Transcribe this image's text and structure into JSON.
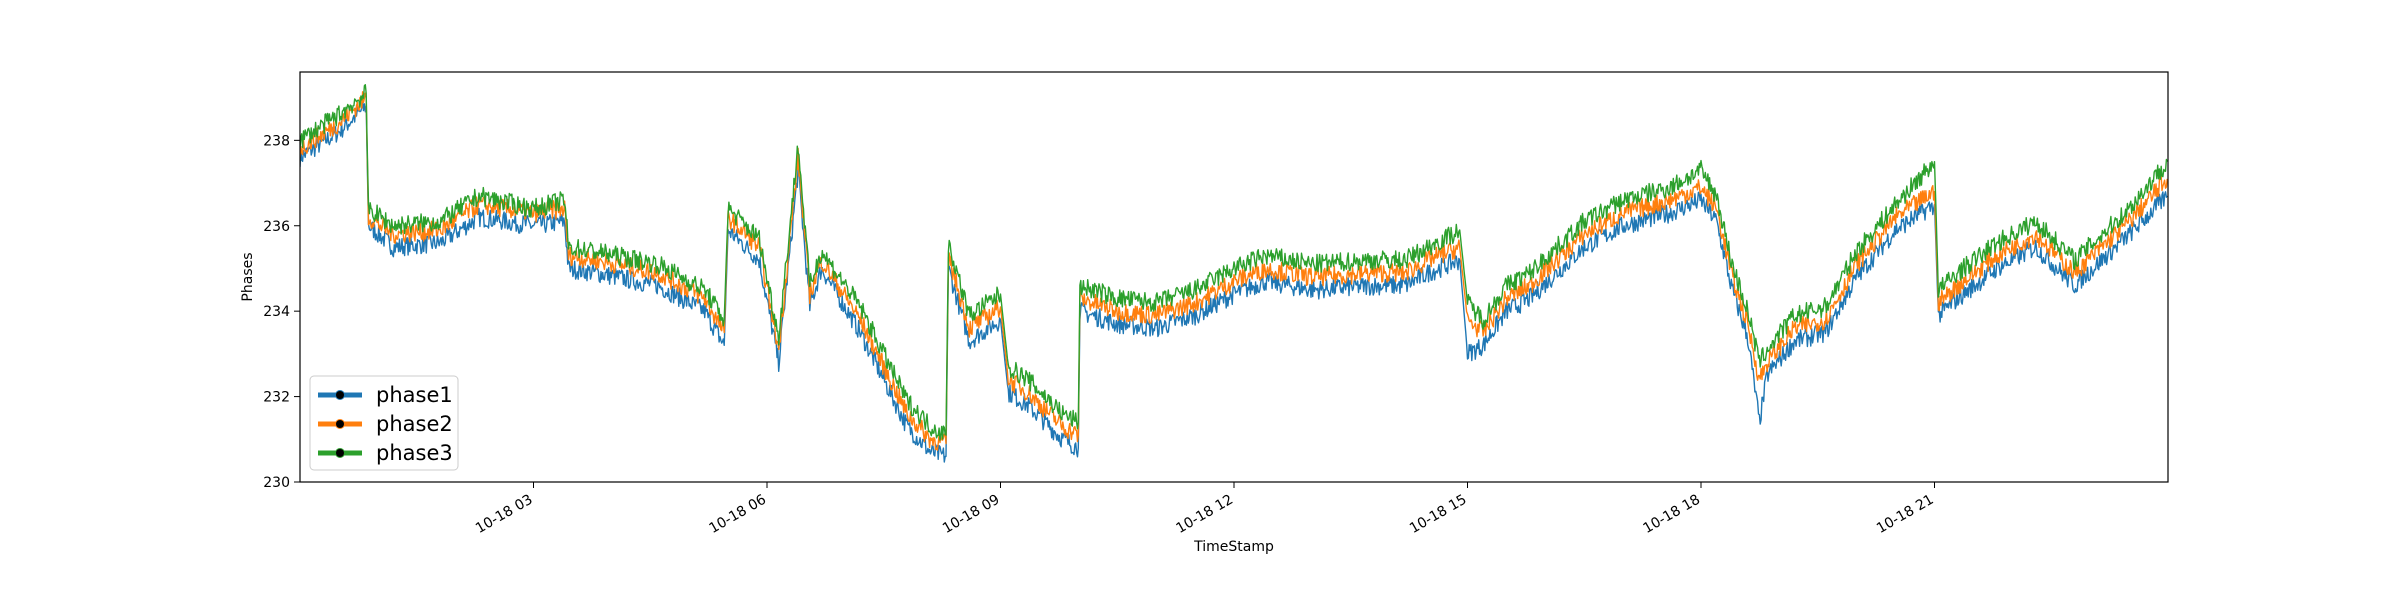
{
  "chart_data": {
    "type": "line",
    "title": "",
    "xlabel": "TimeStamp",
    "ylabel": "Phases",
    "xlim": [
      "10-18 00:00",
      "10-18 23:59"
    ],
    "ylim": [
      230,
      239.6
    ],
    "x_unit": "hour of day (10-18)",
    "xticks": [
      {
        "label": "10-18 03",
        "value": 3
      },
      {
        "label": "10-18 06",
        "value": 6
      },
      {
        "label": "10-18 09",
        "value": 9
      },
      {
        "label": "10-18 12",
        "value": 12
      },
      {
        "label": "10-18 15",
        "value": 15
      },
      {
        "label": "10-18 18",
        "value": 18
      },
      {
        "label": "10-18 21",
        "value": 21
      }
    ],
    "yticks": [
      230,
      232,
      234,
      236,
      238
    ],
    "grid": false,
    "legend_position": "bottom-left",
    "series": [
      {
        "name": "phase1",
        "color": "#1f77b4",
        "x": [
          0.0,
          0.5,
          0.85,
          0.88,
          1.2,
          1.8,
          2.3,
          3.0,
          3.4,
          3.45,
          3.8,
          4.6,
          5.2,
          5.45,
          5.5,
          5.9,
          6.15,
          6.4,
          6.55,
          6.7,
          7.2,
          7.8,
          8.1,
          8.3,
          8.33,
          8.6,
          9.0,
          9.1,
          9.35,
          9.8,
          10.0,
          10.02,
          10.5,
          11.0,
          11.5,
          12.0,
          12.4,
          13.0,
          13.8,
          14.2,
          14.5,
          14.9,
          15.0,
          15.2,
          15.5,
          15.8,
          16.5,
          17.0,
          17.6,
          18.0,
          18.2,
          18.4,
          18.6,
          18.75,
          18.85,
          19.2,
          19.6,
          20.0,
          20.5,
          21.0,
          21.05,
          21.3,
          21.8,
          22.3,
          22.8,
          23.5,
          23.99
        ],
        "y": [
          237.6,
          238.2,
          238.8,
          236.0,
          235.5,
          235.6,
          236.2,
          236.0,
          236.1,
          235.0,
          234.9,
          234.6,
          234.0,
          233.2,
          235.9,
          235.2,
          232.8,
          237.3,
          234.1,
          235.0,
          233.5,
          231.3,
          230.7,
          230.6,
          235.0,
          233.3,
          233.8,
          232.1,
          231.8,
          231.0,
          230.8,
          234.0,
          233.7,
          233.6,
          233.9,
          234.4,
          234.7,
          234.5,
          234.6,
          234.6,
          234.9,
          235.2,
          233.0,
          233.2,
          234.0,
          234.3,
          235.5,
          236.0,
          236.3,
          236.6,
          236.1,
          234.5,
          233.4,
          231.4,
          232.5,
          233.3,
          233.5,
          234.8,
          235.9,
          236.5,
          233.9,
          234.3,
          235.0,
          235.5,
          234.6,
          235.8,
          236.7
        ]
      },
      {
        "name": "phase2",
        "color": "#ff7f0e",
        "x": [
          0.0,
          0.5,
          0.85,
          0.88,
          1.2,
          1.8,
          2.3,
          3.0,
          3.4,
          3.45,
          3.8,
          4.6,
          5.2,
          5.45,
          5.5,
          5.9,
          6.15,
          6.4,
          6.55,
          6.7,
          7.2,
          7.8,
          8.1,
          8.3,
          8.33,
          8.6,
          9.0,
          9.1,
          9.35,
          9.8,
          10.0,
          10.02,
          10.5,
          11.0,
          11.5,
          12.0,
          12.4,
          13.0,
          13.8,
          14.2,
          14.5,
          14.9,
          15.0,
          15.2,
          15.5,
          15.8,
          16.5,
          17.0,
          17.6,
          18.0,
          18.2,
          18.4,
          18.6,
          18.75,
          18.85,
          19.2,
          19.6,
          20.0,
          20.5,
          21.0,
          21.05,
          21.3,
          21.8,
          22.3,
          22.8,
          23.5,
          23.99
        ],
        "y": [
          237.8,
          238.4,
          239.0,
          236.2,
          235.8,
          235.9,
          236.5,
          236.3,
          236.4,
          235.3,
          235.2,
          234.9,
          234.3,
          233.5,
          236.2,
          235.5,
          233.1,
          237.6,
          234.4,
          235.2,
          233.8,
          231.6,
          231.0,
          230.9,
          235.3,
          233.6,
          234.1,
          232.4,
          232.1,
          231.3,
          231.1,
          234.3,
          234.0,
          233.9,
          234.2,
          234.7,
          235.0,
          234.8,
          234.9,
          234.9,
          235.2,
          235.5,
          233.8,
          233.5,
          234.3,
          234.6,
          235.8,
          236.3,
          236.6,
          236.9,
          236.4,
          234.8,
          233.7,
          232.4,
          232.8,
          233.6,
          233.8,
          235.1,
          236.2,
          236.8,
          234.2,
          234.6,
          235.3,
          235.8,
          234.9,
          236.1,
          237.1
        ]
      },
      {
        "name": "phase3",
        "color": "#2ca02c",
        "x": [
          0.0,
          0.5,
          0.85,
          0.88,
          1.2,
          1.8,
          2.3,
          3.0,
          3.4,
          3.45,
          3.8,
          4.6,
          5.2,
          5.45,
          5.5,
          5.9,
          6.15,
          6.4,
          6.55,
          6.7,
          7.2,
          7.8,
          8.1,
          8.3,
          8.33,
          8.6,
          9.0,
          9.1,
          9.35,
          9.8,
          10.0,
          10.02,
          10.5,
          11.0,
          11.5,
          12.0,
          12.4,
          13.0,
          13.8,
          14.2,
          14.5,
          14.9,
          15.0,
          15.2,
          15.5,
          15.8,
          16.5,
          17.0,
          17.6,
          18.0,
          18.2,
          18.4,
          18.6,
          18.75,
          18.85,
          19.2,
          19.6,
          20.0,
          20.5,
          21.0,
          21.05,
          21.3,
          21.8,
          22.3,
          22.8,
          23.5,
          23.99
        ],
        "y": [
          238.0,
          238.6,
          239.1,
          236.4,
          236.0,
          236.1,
          236.7,
          236.4,
          236.6,
          235.5,
          235.4,
          235.1,
          234.5,
          233.8,
          236.4,
          235.7,
          233.4,
          237.9,
          234.6,
          235.4,
          234.1,
          231.9,
          231.3,
          231.1,
          235.6,
          233.9,
          234.4,
          232.7,
          232.4,
          231.6,
          231.4,
          234.6,
          234.3,
          234.2,
          234.5,
          235.0,
          235.3,
          235.1,
          235.2,
          235.2,
          235.5,
          235.9,
          234.2,
          233.8,
          234.6,
          234.9,
          236.1,
          236.6,
          236.9,
          237.3,
          236.7,
          235.1,
          234.0,
          232.8,
          233.1,
          233.9,
          234.1,
          235.4,
          236.5,
          237.5,
          234.5,
          234.9,
          235.6,
          236.1,
          235.2,
          236.4,
          237.5
        ]
      }
    ]
  }
}
